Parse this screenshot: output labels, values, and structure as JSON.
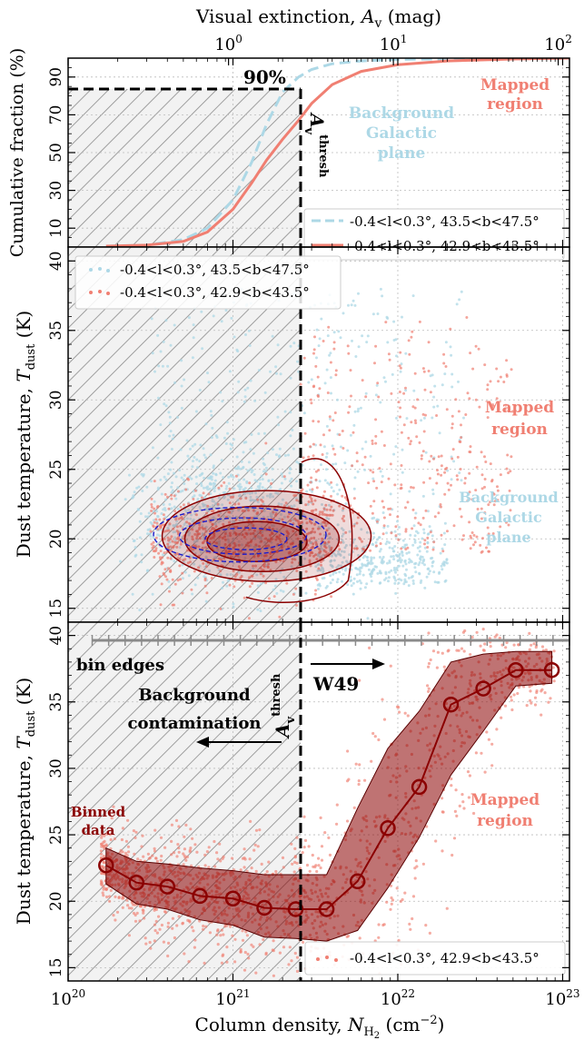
{
  "chart_data": [
    {
      "type": "line",
      "panel": "top",
      "top_axis": {
        "label_text": "Visual extinction, ",
        "label_sym": "A",
        "label_sub": "v",
        "label_unit": " (mag)",
        "scale": "log",
        "ticks": [
          {
            "value": 1,
            "label": "10",
            "exp": "0"
          },
          {
            "value": 10,
            "label": "10",
            "exp": "1"
          },
          {
            "value": 100,
            "label": "10",
            "exp": "2"
          }
        ]
      },
      "ylabel": "Cumulative fraction (%)",
      "ylim": [
        0,
        100
      ],
      "yticks": [
        10,
        30,
        50,
        70,
        90
      ],
      "series": [
        {
          "name": "-0.4<l<0.3°, 43.5<b<47.5°",
          "color": "#add8e6",
          "style": "dashed",
          "points": [
            [
              1.7e+20,
              0.5
            ],
            [
              3e+20,
              1
            ],
            [
              5e+20,
              4
            ],
            [
              7e+20,
              10
            ],
            [
              1e+21,
              25
            ],
            [
              1.3e+21,
              45
            ],
            [
              1.6e+21,
              65
            ],
            [
              2e+21,
              82
            ],
            [
              2.5e+21,
              90
            ],
            [
              3e+21,
              94
            ],
            [
              4e+21,
              97
            ],
            [
              6e+21,
              98.5
            ],
            [
              1e+22,
              99.3
            ],
            [
              3e+22,
              99.8
            ],
            [
              1.1e+23,
              100
            ]
          ]
        },
        {
          "name": "-0.4<l<0.3°, 42.9<b<43.5°",
          "color": "#f07f72",
          "style": "solid",
          "points": [
            [
              1.7e+20,
              0.5
            ],
            [
              3e+20,
              1
            ],
            [
              5e+20,
              3
            ],
            [
              7e+20,
              8
            ],
            [
              1e+21,
              20
            ],
            [
              1.3e+21,
              34
            ],
            [
              1.6e+21,
              46
            ],
            [
              2e+21,
              57
            ],
            [
              2.5e+21,
              67
            ],
            [
              3e+21,
              76
            ],
            [
              4e+21,
              86
            ],
            [
              6e+21,
              93
            ],
            [
              1e+22,
              96.5
            ],
            [
              2e+22,
              98.5
            ],
            [
              5e+22,
              99.5
            ],
            [
              1.1e+23,
              100
            ]
          ]
        }
      ],
      "annotations": {
        "percent": "90%",
        "athresh_sym": "A",
        "athresh_sub": "v",
        "athresh_sup": "thresh",
        "mapped": [
          "Mapped",
          "region"
        ],
        "background": [
          "Background",
          "Galactic",
          "plane"
        ]
      }
    },
    {
      "type": "scatter",
      "panel": "middle",
      "ylabel": "Dust temperature, ",
      "ylabel_sym": "T",
      "ylabel_sub": "dust",
      "ylabel_unit": " (K)",
      "ylim": [
        14,
        41
      ],
      "yticks": [
        15,
        20,
        25,
        30,
        35,
        40
      ],
      "series": [
        {
          "name": "-0.4<l<0.3°, 43.5<b<47.5°",
          "color": "#add8e6"
        },
        {
          "name": "-0.4<l<0.3°, 42.9<b<43.5°",
          "color": "#f07f72"
        }
      ],
      "annotations": {
        "mapped": [
          "Mapped",
          "region"
        ],
        "background": [
          "Background",
          "Galactic",
          "plane"
        ]
      }
    },
    {
      "type": "line",
      "panel": "bottom",
      "ylabel": "Dust temperature, ",
      "ylabel_sym": "T",
      "ylabel_sub": "dust",
      "ylabel_unit": " (K)",
      "ylim": [
        14,
        41
      ],
      "yticks": [
        15,
        20,
        25,
        30,
        35,
        40
      ],
      "xlabel_text": "Column density, ",
      "xlabel_sym": "N",
      "xlabel_sub": "H",
      "xlabel_subsub": "2",
      "xlabel_unit": " (cm",
      "xlabel_exp": "−2",
      "xlabel_close": ")",
      "xlim": [
        1e+20,
        1.1e+23
      ],
      "xscale": "log",
      "xticks": [
        {
          "value": 1e+20,
          "label": "10",
          "exp": "20"
        },
        {
          "value": 1e+21,
          "label": "10",
          "exp": "21"
        },
        {
          "value": 1e+22,
          "label": "10",
          "exp": "22"
        },
        {
          "value": 1e+23,
          "label": "10",
          "exp": "23"
        }
      ],
      "series": [
        {
          "name": "-0.4<l<0.3°, 42.9<b<43.5°",
          "color": "#8b0000",
          "binned_x": [
            1.7e+20,
            2.6e+20,
            4e+20,
            6.3e+20,
            1e+21,
            1.55e+21,
            2.4e+21,
            3.7e+21,
            5.7e+21,
            8.7e+21,
            1.35e+22,
            2.1e+22,
            3.3e+22,
            5.2e+22,
            8.6e+22
          ],
          "binned_y": [
            22.7,
            21.4,
            21.1,
            20.4,
            20.2,
            19.5,
            19.4,
            19.4,
            21.5,
            25.5,
            28.6,
            34.8,
            36.0,
            37.4,
            37.4
          ],
          "band_upper": [
            24.0,
            23.0,
            22.8,
            22.5,
            22.3,
            22.0,
            22.0,
            22.0,
            27.0,
            31.5,
            34.3,
            38.0,
            38.6,
            38.8,
            38.8
          ],
          "band_lower": [
            21.3,
            19.8,
            19.4,
            18.6,
            18.2,
            17.3,
            17.2,
            17.0,
            17.8,
            21.0,
            24.8,
            29.5,
            32.8,
            36.2,
            36.4
          ]
        }
      ],
      "annotations": {
        "bin_edges": "bin edges",
        "background_contamination": [
          "Background",
          "contamination"
        ],
        "w49": "W49",
        "binned": [
          "Binned",
          "data"
        ],
        "mapped": [
          "Mapped",
          "region"
        ],
        "athresh_sym": "A",
        "athresh_sub": "v",
        "athresh_sup": "thresh"
      },
      "legend": "-0.4<l<0.3°, 42.9<b<43.5°"
    }
  ]
}
